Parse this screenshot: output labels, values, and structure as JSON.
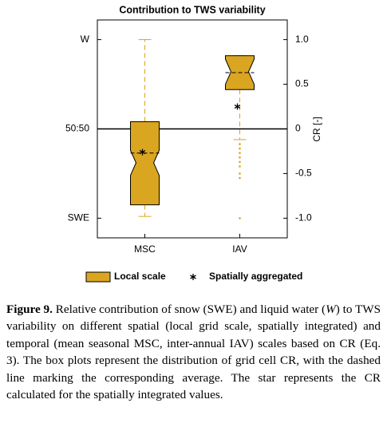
{
  "chart_data": {
    "type": "box",
    "title": "Contribution to TWS variability",
    "categories": [
      "MSC",
      "IAV"
    ],
    "ylim": [
      -1.22,
      1.22
    ],
    "yticks": [
      {
        "value": 1,
        "label": "W"
      },
      {
        "value": 0,
        "label": "50:50"
      },
      {
        "value": -1,
        "label": "SWE"
      }
    ],
    "y2lim": [
      -1.22,
      1.22
    ],
    "y2ticks": [
      {
        "value": 1,
        "label": "1.0"
      },
      0.5,
      0,
      -0.5,
      {
        "value": -1,
        "label": "-1.0"
      }
    ],
    "y2label": "CR [-]",
    "reference_line": 0,
    "series": [
      {
        "name": "Local scale",
        "color": "#daa520",
        "boxes": [
          {
            "whisker_low": -0.98,
            "q1": -0.85,
            "median": -0.38,
            "mean": -0.27,
            "q3": 0.08,
            "whisker_high": 1.0,
            "outliers": []
          },
          {
            "whisker_low": -0.12,
            "q1": 0.44,
            "median": 0.64,
            "mean": 0.63,
            "q3": 0.82,
            "whisker_high": 0.82,
            "outliers": [
              -0.17,
              -0.22,
              -0.27,
              -0.32,
              -0.37,
              -0.42,
              -0.5,
              -0.55,
              -1.0
            ]
          }
        ]
      },
      {
        "name": "Spatially aggregated",
        "color": "#000000",
        "values": [
          -0.26,
          0.25
        ]
      }
    ],
    "legend": "bottom"
  },
  "caption": {
    "label": "Figure 9.",
    "parts": [
      "Relative contribution of snow (SWE) and liquid water (",
      "W",
      ") to TWS variability on different spatial (local grid scale, spatially integrated) and temporal (mean seasonal MSC, inter-annual IAV) scales based on CR (Eq. 3). The box plots represent the distribution of grid cell CR, with the dashed line marking the corresponding average. The star represents the CR calculated for the spatially integrated values."
    ]
  }
}
